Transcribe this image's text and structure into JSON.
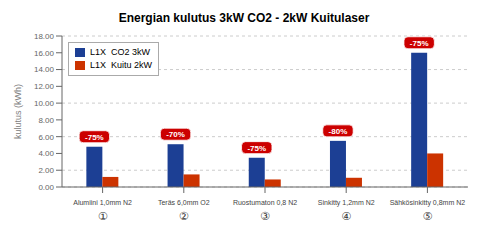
{
  "chart_data": {
    "type": "bar",
    "title": "Energian kulutus 3kW CO2 - 2kW Kuitulaser",
    "ylabel": "kulutus (kWh)",
    "categories": [
      "Alumiini 1,0mm N2",
      "Teräs 6,0mm O2",
      "Ruostumaton 0,8 N2",
      "Sinkitty 1,2mm N2",
      "Sähkösinkitty 0,8mm N2"
    ],
    "x_numbers": [
      "①",
      "②",
      "③",
      "④",
      "⑤"
    ],
    "series": [
      {
        "name": "L1X  CO2 3kW",
        "color": "#1c3f94",
        "values": [
          4.8,
          5.1,
          3.5,
          5.5,
          16.0
        ],
        "annotations": [
          {
            "text": "-75%",
            "color": "#cc0000"
          },
          {
            "text": "-70%",
            "color": "#cc0000"
          },
          {
            "text": "-75%",
            "color": "#cc0000"
          },
          {
            "text": "-80%",
            "color": "#cc0000"
          },
          {
            "text": "-75%",
            "color": "#cc0000"
          }
        ]
      },
      {
        "name": "L1X  Kuitu 2kW",
        "color": "#cc3300",
        "values": [
          1.2,
          1.5,
          0.9,
          1.1,
          4.0
        ]
      }
    ],
    "ylim": [
      0,
      18
    ],
    "yticks": [
      {
        "value": 0,
        "label": "0.00"
      },
      {
        "value": 2,
        "label": "2.00"
      },
      {
        "value": 4,
        "label": "4.00"
      },
      {
        "value": 6,
        "label": "6.00"
      },
      {
        "value": 8,
        "label": "8.00"
      },
      {
        "value": 10,
        "label": "10.00"
      },
      {
        "value": 12,
        "label": "12.00"
      },
      {
        "value": 14,
        "label": "14.00"
      },
      {
        "value": 16,
        "label": "16.00"
      },
      {
        "value": 18,
        "label": "18.00"
      }
    ],
    "grid": true,
    "legend": "upper left"
  }
}
